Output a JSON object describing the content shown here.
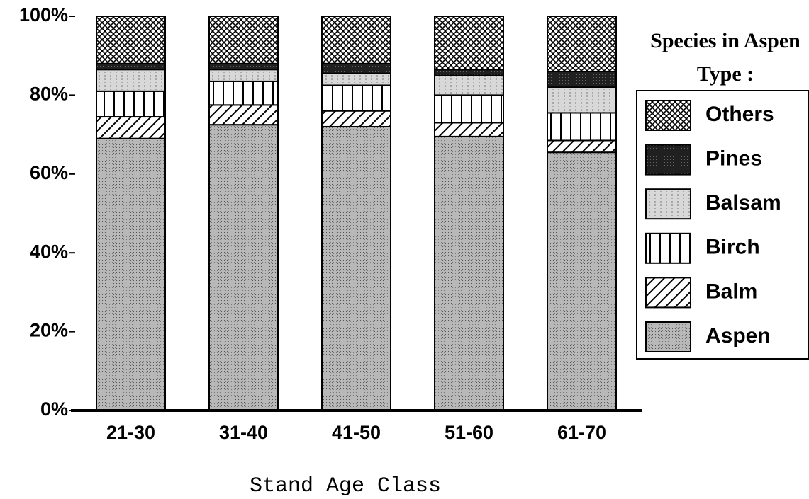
{
  "chart_data": {
    "type": "stacked_bar",
    "legend_title": "Species in Aspen Type :",
    "x_label": "Stand Age Class",
    "categories": [
      "21-30",
      "31-40",
      "41-50",
      "51-60",
      "61-70"
    ],
    "series": [
      {
        "name": "Aspen",
        "color": "#b8b8b8",
        "values": [
          69,
          72.5,
          72,
          69.5,
          65.5
        ]
      },
      {
        "name": "Balm",
        "color": "#ffffff",
        "values": [
          5.5,
          5,
          4,
          3.5,
          3
        ]
      },
      {
        "name": "Birch",
        "color": "#ffffff",
        "values": [
          6.5,
          6,
          6.5,
          7,
          7
        ]
      },
      {
        "name": "Balsam",
        "color": "#d8d8d8",
        "values": [
          5.5,
          3,
          3,
          5,
          6.5
        ]
      },
      {
        "name": "Pines",
        "color": "#202020",
        "values": [
          1.5,
          1.5,
          2.5,
          1.5,
          4
        ]
      },
      {
        "name": "Others",
        "color": "#ffffff",
        "values": [
          12,
          12,
          12,
          13.5,
          14
        ]
      }
    ],
    "ylim": [
      0,
      100
    ],
    "yticks": [
      {
        "value": 0,
        "label": "0%"
      },
      {
        "value": 20,
        "label": "20%"
      },
      {
        "value": 40,
        "label": "40%"
      },
      {
        "value": 60,
        "label": "60%"
      },
      {
        "value": 80,
        "label": "80%"
      },
      {
        "value": 100,
        "label": "100%"
      }
    ],
    "legend": "right"
  }
}
